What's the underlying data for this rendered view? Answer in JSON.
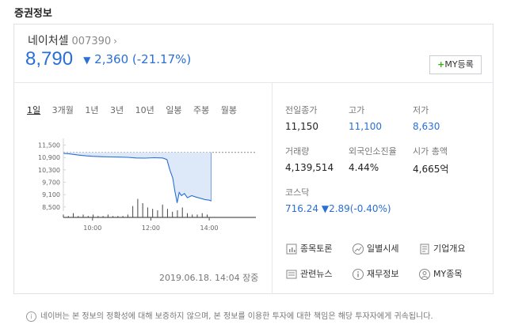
{
  "section_title": "증권정보",
  "stock": {
    "name": "네이처셀",
    "code": "007390",
    "chevron": "›",
    "price": "8,790",
    "change_arrow": "▼",
    "change_value": "2,360",
    "change_percent": "(-21.17%)",
    "my_button_plus": "+",
    "my_button_label": "MY등록"
  },
  "periods": [
    "1일",
    "3개월",
    "1년",
    "3년",
    "10년",
    "일봉",
    "주봉",
    "월봉"
  ],
  "active_period": "1일",
  "chart_data": {
    "type": "line",
    "y_ticks": [
      "11,500",
      "10,900",
      "10,300",
      "9,700",
      "9,100",
      "8,500"
    ],
    "ylim": [
      8300,
      11600
    ],
    "x_ticks": [
      "10:00",
      "12:00",
      "14:00"
    ],
    "reference_line": 11150,
    "series": [
      {
        "values": [
          [
            9.0,
            11100
          ],
          [
            9.2,
            11080
          ],
          [
            9.5,
            11020
          ],
          [
            9.8,
            10980
          ],
          [
            10.0,
            10960
          ],
          [
            10.3,
            10940
          ],
          [
            10.6,
            10930
          ],
          [
            10.9,
            10920
          ],
          [
            11.2,
            10910
          ],
          [
            11.5,
            10880
          ],
          [
            11.8,
            10870
          ],
          [
            12.1,
            10890
          ],
          [
            12.4,
            10880
          ],
          [
            12.55,
            10800
          ],
          [
            12.65,
            10300
          ],
          [
            12.75,
            9900
          ],
          [
            12.82,
            9300
          ],
          [
            12.9,
            8700
          ],
          [
            12.97,
            9200
          ],
          [
            13.05,
            9050
          ],
          [
            13.15,
            9150
          ],
          [
            13.25,
            8950
          ],
          [
            13.4,
            9050
          ],
          [
            13.55,
            8980
          ],
          [
            13.7,
            8920
          ],
          [
            13.85,
            8860
          ],
          [
            14.0,
            8830
          ],
          [
            14.07,
            8790
          ]
        ]
      }
    ],
    "colors": {
      "line": "#2a6fd6",
      "area": "#dde8f8",
      "reference": "#888888"
    }
  },
  "stats": {
    "prev_close_label": "전일종가",
    "prev_close": "11,150",
    "high_label": "고가",
    "high": "11,100",
    "low_label": "저가",
    "low": "8,630",
    "volume_label": "거래량",
    "volume": "4,139,514",
    "foreign_label": "외국인소진율",
    "foreign": "4.44%",
    "marketcap_label": "시가 총액",
    "marketcap": "4,665억",
    "index_label": "코스닥",
    "index_value": "716.24",
    "index_arrow": "▼",
    "index_change": "2.89",
    "index_percent": "(-0.40%)"
  },
  "links": {
    "forum": "종목토론",
    "daily": "일별시세",
    "company": "기업개요",
    "news": "관련뉴스",
    "financial": "재무정보",
    "my_stocks": "MY종목"
  },
  "timestamp": "2019.06.18. 14:04 장중",
  "disclaimer": "네이버는 본 정보의 정확성에 대해 보증하지 않으며, 본 정보를 이용한 투자에 대한 책임은 해당 투자자에게 귀속됩니다.",
  "info_icon_glyph": "i"
}
